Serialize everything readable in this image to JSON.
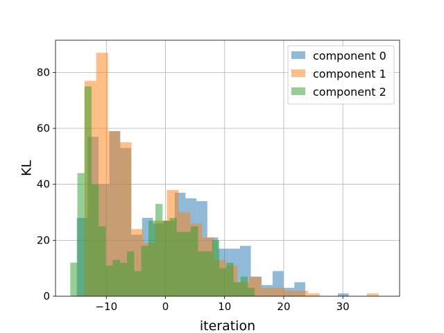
{
  "chart_data": {
    "type": "histogram",
    "xlabel": "iteration",
    "ylabel": "KL",
    "xlim": [
      -18.6,
      39.6
    ],
    "ylim": [
      0,
      91.5
    ],
    "xticks": [
      -10,
      0,
      10,
      20,
      30
    ],
    "yticks": [
      0,
      20,
      40,
      60,
      80
    ],
    "grid": true,
    "legend_position": "top-right",
    "alpha": 0.5,
    "series": [
      {
        "name": "component 0",
        "color": "#1f77b4",
        "bin_start": -15.0,
        "bin_width": 1.84,
        "counts": [
          28,
          57,
          40,
          59,
          53,
          22,
          28,
          26,
          27,
          37,
          35,
          34,
          21,
          17,
          17,
          18,
          7,
          4,
          9,
          3,
          5,
          0,
          0,
          0,
          1
        ]
      },
      {
        "name": "component 1",
        "color": "#ff7f0e",
        "bin_start": -13.7,
        "bin_width": 1.99,
        "counts": [
          77,
          87,
          59,
          55,
          24,
          19,
          27,
          38,
          30,
          26,
          21,
          13,
          11,
          5,
          7,
          3,
          3,
          2,
          2,
          1,
          0,
          0,
          0,
          0,
          1
        ]
      },
      {
        "name": "component 2",
        "color": "#2ca02c",
        "bin_start": -16.1,
        "bin_width": 1.2,
        "counts": [
          12,
          44,
          75,
          40,
          25,
          11,
          13,
          12,
          16,
          9,
          18,
          27,
          33,
          27,
          28,
          23,
          23,
          25,
          16,
          16,
          20,
          10,
          12,
          5,
          7,
          3
        ]
      }
    ]
  }
}
